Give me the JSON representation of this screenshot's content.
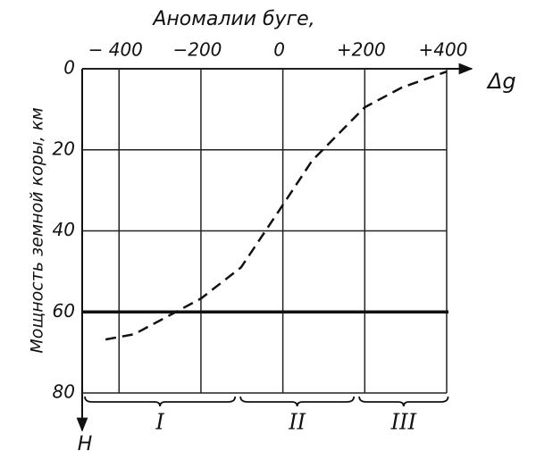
{
  "chart_data": {
    "type": "line",
    "title": "Аномалии буге,",
    "y_label": "Мощность земной коры, км",
    "x_axis_label": "Δg",
    "y_axis_label": "H",
    "x": [
      -433,
      -363,
      -200,
      -102,
      0,
      72,
      200,
      291,
      400
    ],
    "values": [
      66.8,
      65.5,
      56.7,
      49,
      33.6,
      22.6,
      9.5,
      4.6,
      0.7
    ],
    "color": "#111111",
    "dashed": true,
    "xlim": [
      -490,
      400
    ],
    "ylim": [
      0,
      80
    ],
    "y_inverted": true,
    "xticks": [
      {
        "value": -400,
        "label": "− 400"
      },
      {
        "value": -200,
        "label": "−200"
      },
      0,
      {
        "value": 200,
        "label": "+200"
      },
      {
        "value": 400,
        "label": "+400"
      }
    ],
    "yticks": [
      0,
      20,
      40,
      60,
      80
    ],
    "grid": true,
    "zone_base": 60,
    "zones": [
      {
        "label": "I",
        "from": -490,
        "to": -110
      },
      {
        "label": "II",
        "from": -110,
        "to": 180
      },
      {
        "label": "III",
        "from": 180,
        "to": 410
      }
    ]
  }
}
